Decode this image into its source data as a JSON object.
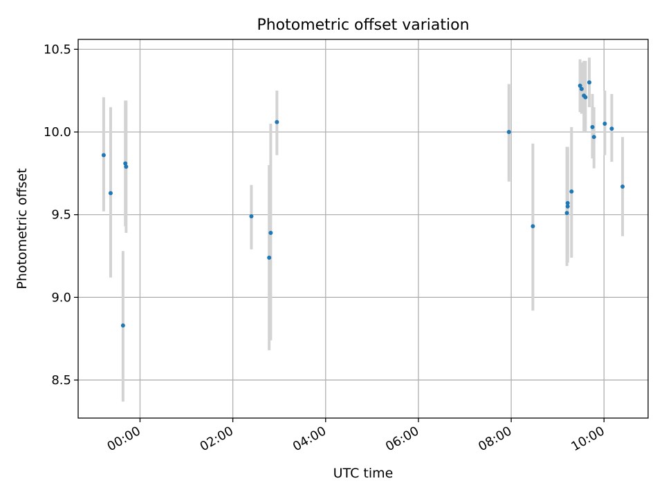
{
  "chart_data": {
    "type": "scatter",
    "title": "Photometric offset variation",
    "xlabel": "UTC time",
    "ylabel": "Photometric offset",
    "x_unit": "UTC time (HH:MM)",
    "xlim": [
      "-01:20",
      "10:57"
    ],
    "ylim": [
      8.27,
      10.56
    ],
    "xticks": [
      "00:00",
      "02:00",
      "04:00",
      "06:00",
      "08:00",
      "10:00"
    ],
    "yticks": [
      8.5,
      9.0,
      9.5,
      10.0,
      10.5
    ],
    "grid": true,
    "legend": "none",
    "colors": {
      "points": "#1f77b4",
      "errorbars": "#d3d3d3",
      "grid": "#b0b0b0"
    },
    "points": [
      {
        "x": "-00:47",
        "y": 9.86,
        "ylow": 9.52,
        "yhigh": 10.21
      },
      {
        "x": "-00:38",
        "y": 9.63,
        "ylow": 9.12,
        "yhigh": 10.15
      },
      {
        "x": "-00:22",
        "y": 8.83,
        "ylow": 8.37,
        "yhigh": 9.28
      },
      {
        "x": "-00:19",
        "y": 9.81,
        "ylow": 9.43,
        "yhigh": 10.19
      },
      {
        "x": "-00:18",
        "y": 9.79,
        "ylow": 9.39,
        "yhigh": 10.19
      },
      {
        "x": "02:24",
        "y": 9.49,
        "ylow": 9.29,
        "yhigh": 9.68
      },
      {
        "x": "02:47",
        "y": 9.24,
        "ylow": 8.68,
        "yhigh": 9.8
      },
      {
        "x": "02:49",
        "y": 9.39,
        "ylow": 8.74,
        "yhigh": 10.05
      },
      {
        "x": "02:57",
        "y": 10.06,
        "ylow": 9.86,
        "yhigh": 10.25
      },
      {
        "x": "07:57",
        "y": 10.0,
        "ylow": 9.7,
        "yhigh": 10.29
      },
      {
        "x": "08:28",
        "y": 9.43,
        "ylow": 8.92,
        "yhigh": 9.93
      },
      {
        "x": "09:12",
        "y": 9.51,
        "ylow": 9.19,
        "yhigh": 9.91
      },
      {
        "x": "09:13",
        "y": 9.57,
        "ylow": 9.23,
        "yhigh": 9.91
      },
      {
        "x": "09:13",
        "y": 9.55,
        "ylow": 9.21,
        "yhigh": 9.89
      },
      {
        "x": "09:18",
        "y": 9.64,
        "ylow": 9.24,
        "yhigh": 10.03
      },
      {
        "x": "09:29",
        "y": 10.28,
        "ylow": 10.12,
        "yhigh": 10.44
      },
      {
        "x": "09:31",
        "y": 10.26,
        "ylow": 10.11,
        "yhigh": 10.42
      },
      {
        "x": "09:34",
        "y": 10.22,
        "ylow": 10.0,
        "yhigh": 10.43
      },
      {
        "x": "09:36",
        "y": 10.21,
        "ylow": 10.0,
        "yhigh": 10.43
      },
      {
        "x": "09:41",
        "y": 10.3,
        "ylow": 10.15,
        "yhigh": 10.45
      },
      {
        "x": "09:45",
        "y": 10.03,
        "ylow": 9.84,
        "yhigh": 10.23
      },
      {
        "x": "09:47",
        "y": 9.97,
        "ylow": 9.78,
        "yhigh": 10.15
      },
      {
        "x": "10:01",
        "y": 10.05,
        "ylow": 9.86,
        "yhigh": 10.25
      },
      {
        "x": "10:10",
        "y": 10.02,
        "ylow": 9.82,
        "yhigh": 10.23
      },
      {
        "x": "10:24",
        "y": 9.67,
        "ylow": 9.37,
        "yhigh": 9.97
      }
    ]
  }
}
